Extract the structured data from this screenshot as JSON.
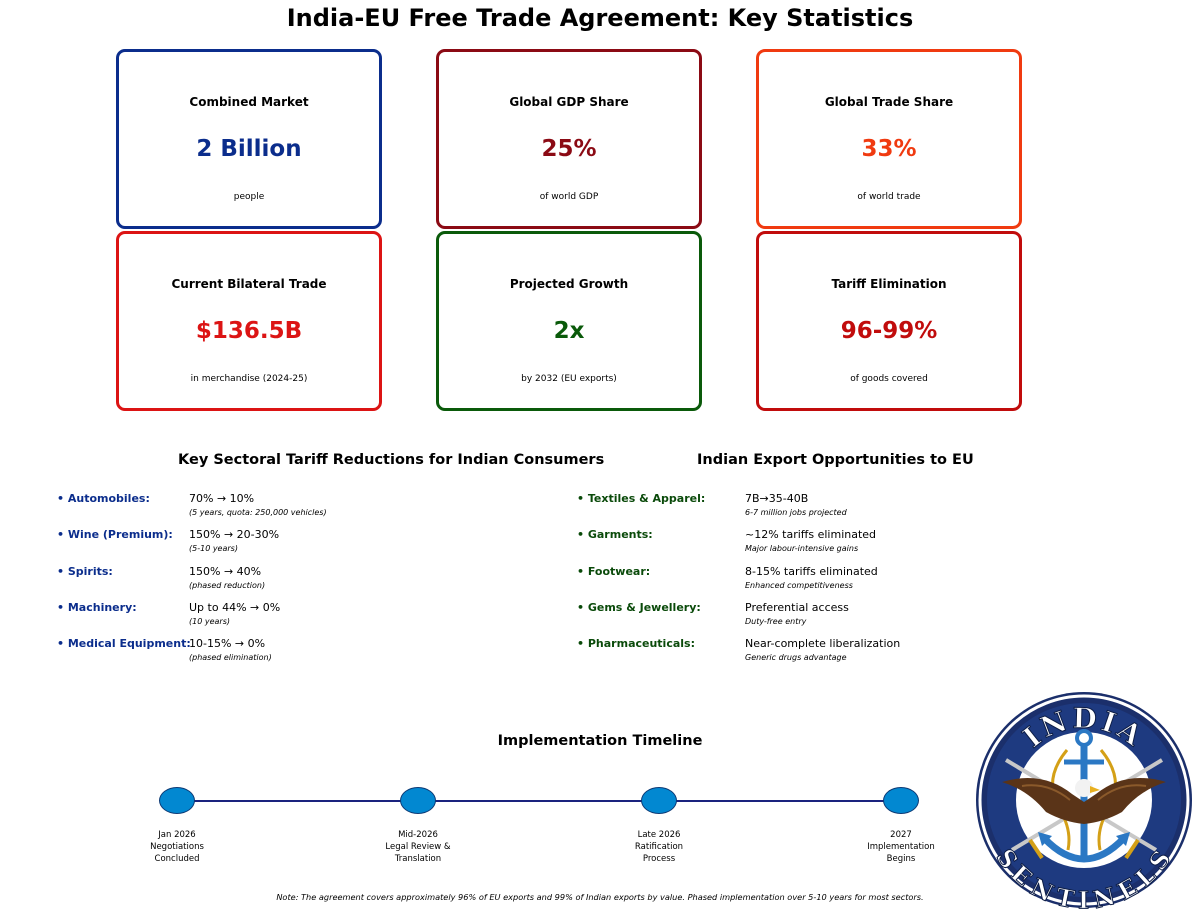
{
  "title": "India-EU Free Trade Agreement: Key Statistics",
  "cards": [
    {
      "label": "Combined Market",
      "value": "2 Billion",
      "sub": "people",
      "color": "#0b2d8c"
    },
    {
      "label": "Global GDP Share",
      "value": "25%",
      "sub": "of world GDP",
      "color": "#8b0a14"
    },
    {
      "label": "Global Trade Share",
      "value": "33%",
      "sub": "of world trade",
      "color": "#f03a10"
    },
    {
      "label": "Current Bilateral Trade",
      "value": "$136.5B",
      "sub": "in merchandise (2024-25)",
      "color": "#dc1414"
    },
    {
      "label": "Projected Growth",
      "value": "2x",
      "sub": "by 2032 (EU exports)",
      "color": "#0a5a0a"
    },
    {
      "label": "Tariff Elimination",
      "value": "96-99%",
      "sub": "of goods covered",
      "color": "#c10c0c"
    }
  ],
  "tariffs": {
    "title": "Key Sectoral Tariff Reductions for Indian Consumers",
    "label_color": "#0b2d8c",
    "items": [
      {
        "label": "• Automobiles:",
        "main": "70% → 10%",
        "note": "(5 years, quota: 250,000 vehicles)"
      },
      {
        "label": "• Wine (Premium):",
        "main": "150% → 20-30%",
        "note": "(5-10 years)"
      },
      {
        "label": "• Spirits:",
        "main": "150% → 40%",
        "note": "(phased reduction)"
      },
      {
        "label": "• Machinery:",
        "main": "Up to 44% → 0%",
        "note": "(10 years)"
      },
      {
        "label": "• Medical Equipment:",
        "main": "10-15% → 0%",
        "note": "(phased elimination)"
      }
    ]
  },
  "exports": {
    "title": "Indian Export Opportunities to EU",
    "label_color": "#0a4a0a",
    "items": [
      {
        "label": "• Textiles & Apparel:",
        "main": "7B→35-40B",
        "note": "6-7 million jobs projected"
      },
      {
        "label": "• Garments:",
        "main": "~12% tariffs eliminated",
        "note": "Major labour-intensive gains"
      },
      {
        "label": "• Footwear:",
        "main": "8-15% tariffs eliminated",
        "note": "Enhanced competitiveness"
      },
      {
        "label": "• Gems & Jewellery:",
        "main": "Preferential access",
        "note": "Duty-free entry"
      },
      {
        "label": "• Pharmaceuticals:",
        "main": "Near-complete liberalization",
        "note": "Generic drugs advantage"
      }
    ]
  },
  "timeline": {
    "title": "Implementation Timeline",
    "events": [
      {
        "line1": "Jan 2026",
        "line2": "Negotiations",
        "line3": "Concluded"
      },
      {
        "line1": "Mid-2026",
        "line2": "Legal Review &",
        "line3": "Translation"
      },
      {
        "line1": "Late 2026",
        "line2": "Ratification",
        "line3": "Process"
      },
      {
        "line1": "2027",
        "line2": "Implementation",
        "line3": "Begins"
      }
    ]
  },
  "note": "Note: The agreement covers approximately 96% of EU exports and 99% of Indian exports by value. Phased implementation over 5-10 years for most sectors.",
  "logo": {
    "top_text": "INDIA",
    "bottom_text": "SENTINELS",
    "icon": "eagle-anchor-emblem-icon"
  }
}
